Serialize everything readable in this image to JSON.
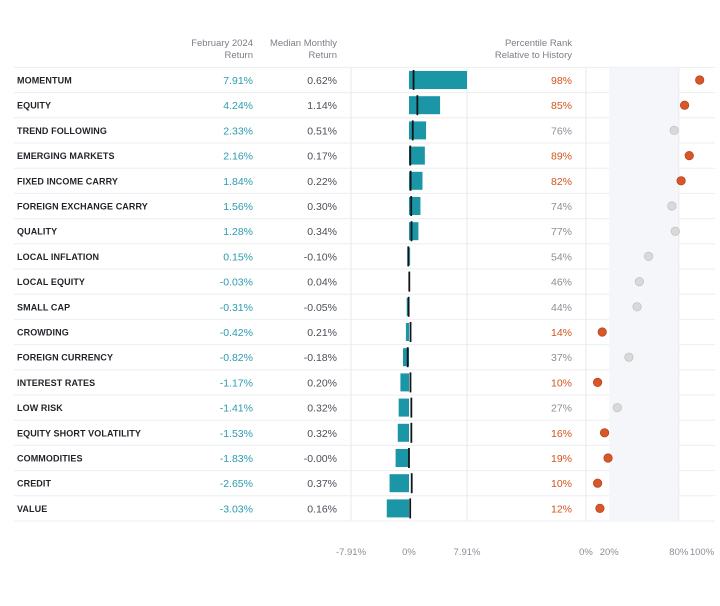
{
  "headers": {
    "feb_return": [
      "February 2024",
      "Return"
    ],
    "median": [
      "Median Monthly",
      "Return"
    ],
    "percentile": [
      "Percentile Rank",
      "Relative to History"
    ]
  },
  "colors": {
    "bar": "#1b96a6",
    "highlight": "#d2541c",
    "neutral": "#8a8f96",
    "return_text": "#2a9bb0",
    "dot_highlight": "#d9562a",
    "dot_neutral": "#d9d9d9",
    "band": "#f4f6f9"
  },
  "chart_data": {
    "type": "table",
    "title": "",
    "rows": [
      {
        "factor": "MOMENTUM",
        "feb_return": 7.91,
        "feb_label": "7.91%",
        "median": 0.62,
        "median_label": "0.62%",
        "percentile": 98,
        "pct_label": "98%",
        "highlight": true
      },
      {
        "factor": "EQUITY",
        "feb_return": 4.24,
        "feb_label": "4.24%",
        "median": 1.14,
        "median_label": "1.14%",
        "percentile": 85,
        "pct_label": "85%",
        "highlight": true
      },
      {
        "factor": "TREND FOLLOWING",
        "feb_return": 2.33,
        "feb_label": "2.33%",
        "median": 0.51,
        "median_label": "0.51%",
        "percentile": 76,
        "pct_label": "76%",
        "highlight": false
      },
      {
        "factor": "EMERGING MARKETS",
        "feb_return": 2.16,
        "feb_label": "2.16%",
        "median": 0.17,
        "median_label": "0.17%",
        "percentile": 89,
        "pct_label": "89%",
        "highlight": true
      },
      {
        "factor": "FIXED INCOME CARRY",
        "feb_return": 1.84,
        "feb_label": "1.84%",
        "median": 0.22,
        "median_label": "0.22%",
        "percentile": 82,
        "pct_label": "82%",
        "highlight": true
      },
      {
        "factor": "FOREIGN EXCHANGE CARRY",
        "feb_return": 1.56,
        "feb_label": "1.56%",
        "median": 0.3,
        "median_label": "0.30%",
        "percentile": 74,
        "pct_label": "74%",
        "highlight": false
      },
      {
        "factor": "QUALITY",
        "feb_return": 1.28,
        "feb_label": "1.28%",
        "median": 0.34,
        "median_label": "0.34%",
        "percentile": 77,
        "pct_label": "77%",
        "highlight": false
      },
      {
        "factor": "LOCAL INFLATION",
        "feb_return": 0.15,
        "feb_label": "0.15%",
        "median": -0.1,
        "median_label": "-0.10%",
        "percentile": 54,
        "pct_label": "54%",
        "highlight": false
      },
      {
        "factor": "LOCAL EQUITY",
        "feb_return": -0.03,
        "feb_label": "-0.03%",
        "median": 0.04,
        "median_label": "0.04%",
        "percentile": 46,
        "pct_label": "46%",
        "highlight": false
      },
      {
        "factor": "SMALL CAP",
        "feb_return": -0.31,
        "feb_label": "-0.31%",
        "median": -0.05,
        "median_label": "-0.05%",
        "percentile": 44,
        "pct_label": "44%",
        "highlight": false
      },
      {
        "factor": "CROWDING",
        "feb_return": -0.42,
        "feb_label": "-0.42%",
        "median": 0.21,
        "median_label": "0.21%",
        "percentile": 14,
        "pct_label": "14%",
        "highlight": true
      },
      {
        "factor": "FOREIGN CURRENCY",
        "feb_return": -0.82,
        "feb_label": "-0.82%",
        "median": -0.18,
        "median_label": "-0.18%",
        "percentile": 37,
        "pct_label": "37%",
        "highlight": false
      },
      {
        "factor": "INTEREST RATES",
        "feb_return": -1.17,
        "feb_label": "-1.17%",
        "median": 0.2,
        "median_label": "0.20%",
        "percentile": 10,
        "pct_label": "10%",
        "highlight": true
      },
      {
        "factor": "LOW RISK",
        "feb_return": -1.41,
        "feb_label": "-1.41%",
        "median": 0.32,
        "median_label": "0.32%",
        "percentile": 27,
        "pct_label": "27%",
        "highlight": false
      },
      {
        "factor": "EQUITY SHORT VOLATILITY",
        "feb_return": -1.53,
        "feb_label": "-1.53%",
        "median": 0.32,
        "median_label": "0.32%",
        "percentile": 16,
        "pct_label": "16%",
        "highlight": true
      },
      {
        "factor": "COMMODITIES",
        "feb_return": -1.83,
        "feb_label": "-1.83%",
        "median": -0.0,
        "median_label": "-0.00%",
        "percentile": 19,
        "pct_label": "19%",
        "highlight": true
      },
      {
        "factor": "CREDIT",
        "feb_return": -2.65,
        "feb_label": "-2.65%",
        "median": 0.37,
        "median_label": "0.37%",
        "percentile": 10,
        "pct_label": "10%",
        "highlight": true
      },
      {
        "factor": "VALUE",
        "feb_return": -3.03,
        "feb_label": "-3.03%",
        "median": 0.16,
        "median_label": "0.16%",
        "percentile": 12,
        "pct_label": "12%",
        "highlight": true
      }
    ],
    "bar_axis": {
      "range": [
        -7.91,
        7.91
      ],
      "ticks": [
        -7.91,
        0,
        7.91
      ],
      "tick_labels": [
        "-7.91%",
        "0%",
        "7.91%"
      ]
    },
    "pct_axis": {
      "range": [
        0,
        100
      ],
      "ticks": [
        0,
        20,
        80,
        100
      ],
      "tick_labels": [
        "0%",
        "20%",
        "80%",
        "100%"
      ],
      "band": [
        20,
        80
      ]
    }
  }
}
